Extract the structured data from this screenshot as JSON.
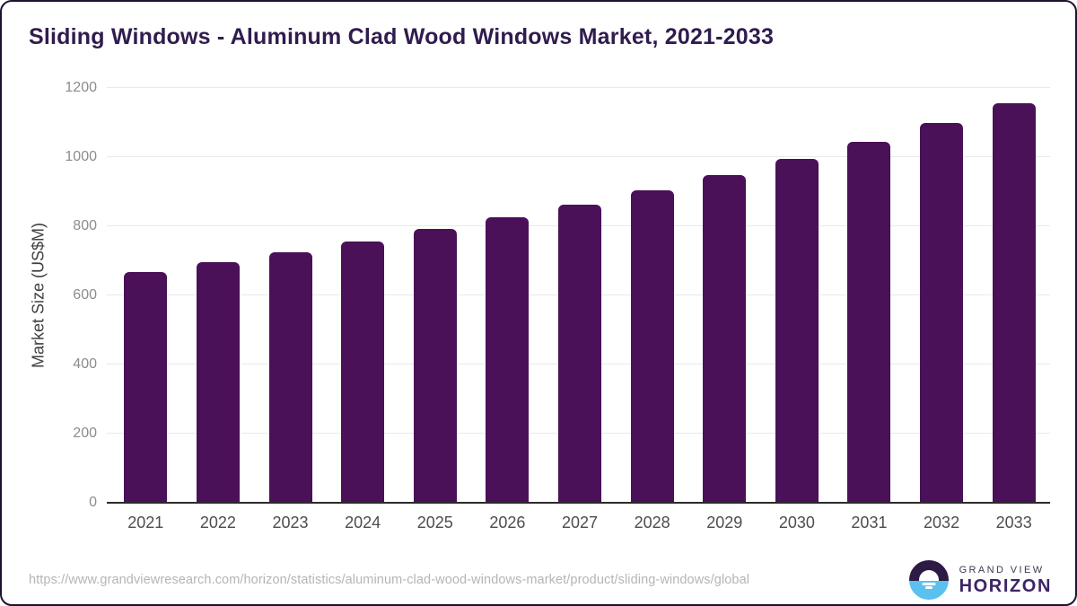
{
  "chart_data": {
    "type": "bar",
    "title": "Sliding Windows - Aluminum Clad Wood Windows Market, 2021-2033",
    "categories": [
      "2021",
      "2022",
      "2023",
      "2024",
      "2025",
      "2026",
      "2027",
      "2028",
      "2029",
      "2030",
      "2031",
      "2032",
      "2033"
    ],
    "values": [
      668,
      696,
      724,
      757,
      791,
      826,
      863,
      904,
      948,
      996,
      1044,
      1098,
      1157
    ],
    "xlabel": "",
    "ylabel": "Market Size (US$M)",
    "ylim": [
      0,
      1200
    ],
    "yticks": [
      0,
      200,
      400,
      600,
      800,
      1000,
      1200
    ],
    "grid": "horizontal",
    "legend": "none"
  },
  "footer": {
    "source_url": "https://www.grandviewresearch.com/horizon/statistics/aluminum-clad-wood-windows-market/product/sliding-windows/global",
    "brand_top": "GRAND VIEW",
    "brand_bottom": "HORIZON"
  },
  "colors": {
    "bar": "#4a1058",
    "title": "#301c4e",
    "grid": "#e9e9e9",
    "axis_line": "#2b2b2b",
    "tick_label": "#8c8c8c",
    "x_label": "#4d4d4d",
    "y_axis_title_color": "#3f3f3f",
    "url": "#b5b5b5",
    "border": "#1f1230",
    "logo_dark": "#2d1a45",
    "logo_blue": "#5ac1ef",
    "brand_top_color": "#3a3a52",
    "brand_bottom_color": "#3b2566"
  }
}
